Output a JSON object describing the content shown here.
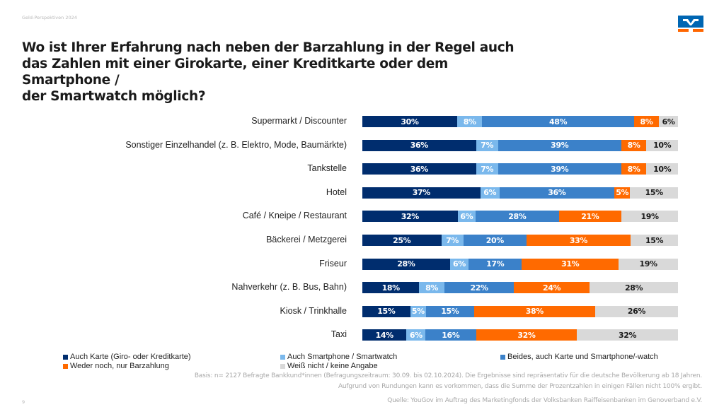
{
  "header": {
    "series_title": "Geld-Perspektiven 2024",
    "logo_colors": {
      "blue": "#0066b3",
      "orange": "#ff6600"
    }
  },
  "page_number": "9",
  "chart_data": {
    "type": "bar",
    "orientation": "horizontal",
    "stacked": true,
    "normalized": true,
    "title": "Wo ist Ihrer Erfahrung nach neben der Barzahlung in der Regel auch das Zahlen mit einer Girokarte, einer Kreditkarte oder dem Smartphone / der Smartwatch möglich?",
    "title_lines": [
      "Wo ist Ihrer Erfahrung nach neben der Barzahlung in der Regel auch",
      "das Zahlen mit einer Girokarte, einer Kreditkarte oder dem Smartphone /",
      "der Smartwatch möglich?"
    ],
    "xlabel": "",
    "ylabel": "",
    "unit": "%",
    "grid": false,
    "legend_position": "bottom",
    "categories": [
      "Supermarkt / Discounter",
      "Sonstiger Einzelhandel (z. B. Elektro, Mode, Baumärkte)",
      "Tankstelle",
      "Hotel",
      "Café / Kneipe / Restaurant",
      "Bäckerei / Metzgerei",
      "Friseur",
      "Nahverkehr (z. B. Bus, Bahn)",
      "Kiosk / Trinkhalle",
      "Taxi"
    ],
    "series": [
      {
        "name": "Auch Karte (Giro- oder Kreditkarte)",
        "color": "#002d6e",
        "label_color": "#ffffff",
        "values": [
          30,
          36,
          36,
          37,
          32,
          25,
          28,
          18,
          15,
          14
        ]
      },
      {
        "name": "Auch Smartphone / Smartwatch",
        "color": "#7ab8ec",
        "label_color": "#ffffff",
        "values": [
          8,
          7,
          7,
          6,
          6,
          7,
          6,
          8,
          5,
          6
        ]
      },
      {
        "name": "Beides, auch Karte und Smartphone/-watch",
        "color": "#3b81c9",
        "label_color": "#ffffff",
        "values": [
          48,
          39,
          39,
          36,
          28,
          20,
          17,
          22,
          15,
          16
        ]
      },
      {
        "name": "Weder noch, nur Barzahlung",
        "color": "#ff6a00",
        "label_color": "#ffffff",
        "values": [
          8,
          8,
          8,
          5,
          21,
          33,
          31,
          24,
          38,
          32
        ]
      },
      {
        "name": "Weiß nicht / keine Angabe",
        "color": "#d9d9d9",
        "label_color": "#1a1a1a",
        "values": [
          6,
          10,
          10,
          15,
          19,
          15,
          19,
          28,
          26,
          32
        ]
      }
    ]
  },
  "footnotes": {
    "basis": "Basis: n= 2127 Befragte Bankkund*innen (Befragungszeitraum: 30.09. bis 02.10.2024). Die Ergebnisse sind repräsentativ für die deutsche Bevölkerung ab 18 Jahren.",
    "rounding": "Aufgrund von Rundungen kann es vorkommen, dass die Summe der Prozentzahlen in einigen Fällen nicht 100% ergibt.",
    "source": "Quelle: YouGov im Auftrag des Marketingfonds der Volksbanken Raiffeisenbanken im Genoverband e.V."
  }
}
